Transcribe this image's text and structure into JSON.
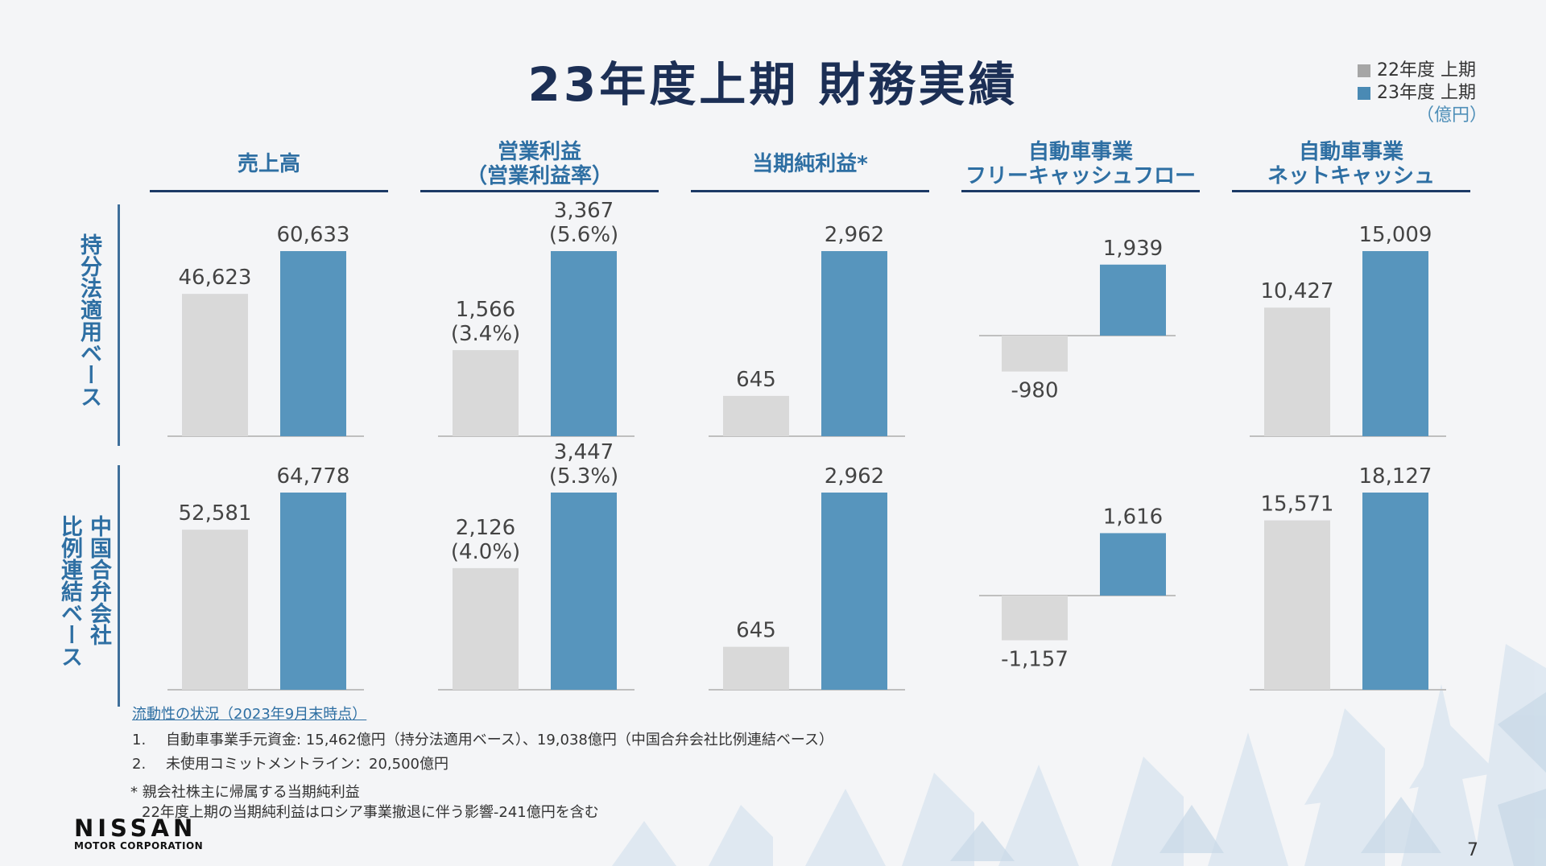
{
  "title": "23年度上期 財務実績",
  "legend": {
    "items": [
      {
        "label": "22年度 上期",
        "color": "#a6a6a6"
      },
      {
        "label": "23年度 上期",
        "color": "#4a8ab4"
      }
    ],
    "unit": "（億円）"
  },
  "columns": [
    {
      "line1": "売上高",
      "line2": ""
    },
    {
      "line1": "営業利益",
      "line2": "（営業利益率）"
    },
    {
      "line1": "当期純利益*",
      "line2": ""
    },
    {
      "line1": "自動車事業",
      "line2": "フリーキャッシュフロー"
    },
    {
      "line1": "自動車事業",
      "line2": "ネットキャッシュ"
    }
  ],
  "rows": [
    {
      "label_lines": [
        "持分法適用ベース"
      ]
    },
    {
      "label_lines": [
        "中国合弁会社",
        "比例連結ベース"
      ]
    }
  ],
  "colors": {
    "prior": "#d9d9d9",
    "current": "#5795bd",
    "axis": "#bfbfbf"
  },
  "chart_data": [
    {
      "type": "bar",
      "row": "持分法適用ベース",
      "categories": [
        "売上高"
      ],
      "series": [
        {
          "name": "22年度 上期",
          "values": [
            46623
          ],
          "labels": [
            "46,623"
          ]
        },
        {
          "name": "23年度 上期",
          "values": [
            60633
          ],
          "labels": [
            "60,633"
          ]
        }
      ]
    },
    {
      "type": "bar",
      "row": "持分法適用ベース",
      "categories": [
        "営業利益"
      ],
      "series": [
        {
          "name": "22年度 上期",
          "values": [
            1566
          ],
          "labels": [
            "1,566\n(3.4%)"
          ]
        },
        {
          "name": "23年度 上期",
          "values": [
            3367
          ],
          "labels": [
            "3,367\n(5.6%)"
          ]
        }
      ]
    },
    {
      "type": "bar",
      "row": "持分法適用ベース",
      "categories": [
        "当期純利益*"
      ],
      "series": [
        {
          "name": "22年度 上期",
          "values": [
            645
          ],
          "labels": [
            "645"
          ]
        },
        {
          "name": "23年度 上期",
          "values": [
            2962
          ],
          "labels": [
            "2,962"
          ]
        }
      ]
    },
    {
      "type": "bar",
      "row": "持分法適用ベース",
      "categories": [
        "自動車事業フリーキャッシュフロー"
      ],
      "series": [
        {
          "name": "22年度 上期",
          "values": [
            -980
          ],
          "labels": [
            "-980"
          ]
        },
        {
          "name": "23年度 上期",
          "values": [
            1939
          ],
          "labels": [
            "1,939"
          ]
        }
      ]
    },
    {
      "type": "bar",
      "row": "持分法適用ベース",
      "categories": [
        "自動車事業ネットキャッシュ"
      ],
      "series": [
        {
          "name": "22年度 上期",
          "values": [
            10427
          ],
          "labels": [
            "10,427"
          ]
        },
        {
          "name": "23年度 上期",
          "values": [
            15009
          ],
          "labels": [
            "15,009"
          ]
        }
      ]
    },
    {
      "type": "bar",
      "row": "中国合弁会社比例連結ベース",
      "categories": [
        "売上高"
      ],
      "series": [
        {
          "name": "22年度 上期",
          "values": [
            52581
          ],
          "labels": [
            "52,581"
          ]
        },
        {
          "name": "23年度 上期",
          "values": [
            64778
          ],
          "labels": [
            "64,778"
          ]
        }
      ]
    },
    {
      "type": "bar",
      "row": "中国合弁会社比例連結ベース",
      "categories": [
        "営業利益"
      ],
      "series": [
        {
          "name": "22年度 上期",
          "values": [
            2126
          ],
          "labels": [
            "2,126\n(4.0%)"
          ]
        },
        {
          "name": "23年度 上期",
          "values": [
            3447
          ],
          "labels": [
            "3,447\n(5.3%)"
          ]
        }
      ]
    },
    {
      "type": "bar",
      "row": "中国合弁会社比例連結ベース",
      "categories": [
        "当期純利益*"
      ],
      "series": [
        {
          "name": "22年度 上期",
          "values": [
            645
          ],
          "labels": [
            "645"
          ]
        },
        {
          "name": "23年度 上期",
          "values": [
            2962
          ],
          "labels": [
            "2,962"
          ]
        }
      ]
    },
    {
      "type": "bar",
      "row": "中国合弁会社比例連結ベース",
      "categories": [
        "自動車事業フリーキャッシュフロー"
      ],
      "series": [
        {
          "name": "22年度 上期",
          "values": [
            -1157
          ],
          "labels": [
            "-1,157"
          ]
        },
        {
          "name": "23年度 上期",
          "values": [
            1616
          ],
          "labels": [
            "1,616"
          ]
        }
      ]
    },
    {
      "type": "bar",
      "row": "中国合弁会社比例連結ベース",
      "categories": [
        "自動車事業ネットキャッシュ"
      ],
      "series": [
        {
          "name": "22年度 上期",
          "values": [
            15571
          ],
          "labels": [
            "15,571"
          ]
        },
        {
          "name": "23年度 上期",
          "values": [
            18127
          ],
          "labels": [
            "18,127"
          ]
        }
      ]
    }
  ],
  "notes": {
    "title": "流動性の状況（2023年9月末時点）",
    "items": [
      {
        "num": "1.",
        "text": "自動車事業手元資金: 15,462億円（持分法適用ベース）、19,038億円（中国合弁会社比例連結ベース）"
      },
      {
        "num": "2.",
        "text": "未使用コミットメントライン：20,500億円"
      }
    ],
    "footnote1": "* 親会社株主に帰属する当期純利益",
    "footnote2": "22年度上期の当期純利益はロシア事業撤退に伴う影響-241億円を含む"
  },
  "logo": {
    "name": "NISSAN",
    "sub": "MOTOR CORPORATION"
  },
  "page_number": "7"
}
